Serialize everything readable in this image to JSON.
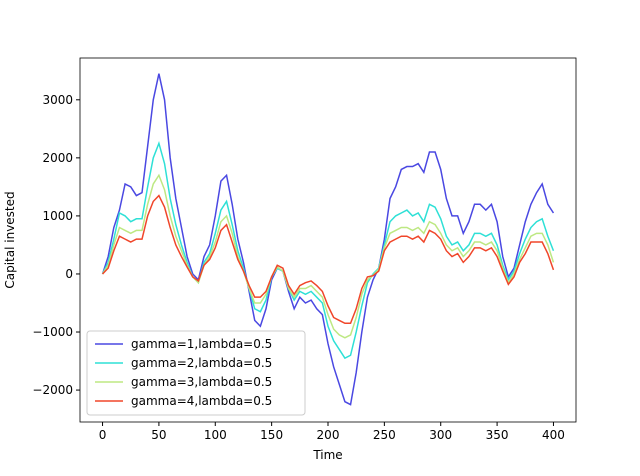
{
  "chart_data": {
    "type": "line",
    "x_label": "Time",
    "y_label": "Capital invested",
    "x": [
      0,
      5,
      10,
      15,
      20,
      25,
      30,
      35,
      40,
      45,
      50,
      55,
      60,
      65,
      70,
      75,
      80,
      85,
      90,
      95,
      100,
      105,
      110,
      115,
      120,
      125,
      130,
      135,
      140,
      145,
      150,
      155,
      160,
      165,
      170,
      175,
      180,
      185,
      190,
      195,
      200,
      205,
      210,
      215,
      220,
      225,
      230,
      235,
      240,
      245,
      250,
      255,
      260,
      265,
      270,
      275,
      280,
      285,
      290,
      295,
      300,
      305,
      310,
      315,
      320,
      325,
      330,
      335,
      340,
      345,
      350,
      355,
      360,
      365,
      370,
      375,
      380,
      385,
      390,
      395,
      400
    ],
    "series": [
      {
        "name": "gamma=1,lambda=0.5",
        "color": "#4a48e2",
        "values": [
          0,
          300,
          800,
          1100,
          1550,
          1500,
          1350,
          1400,
          2200,
          3000,
          3450,
          3000,
          2000,
          1300,
          800,
          300,
          0,
          -100,
          300,
          500,
          1000,
          1600,
          1700,
          1200,
          600,
          200,
          -300,
          -800,
          -900,
          -600,
          -100,
          100,
          50,
          -300,
          -600,
          -400,
          -500,
          -450,
          -600,
          -700,
          -1200,
          -1600,
          -1900,
          -2200,
          -2250,
          -1700,
          -1000,
          -400,
          -100,
          100,
          600,
          1300,
          1500,
          1800,
          1850,
          1850,
          1900,
          1750,
          2100,
          2100,
          1800,
          1300,
          1000,
          1000,
          700,
          900,
          1200,
          1200,
          1100,
          1200,
          900,
          300,
          -50,
          100,
          500,
          900,
          1200,
          1400,
          1550,
          1200,
          1050
        ]
      },
      {
        "name": "gamma=2,lambda=0.5",
        "color": "#2ee0d6",
        "values": [
          0,
          200,
          600,
          1050,
          1000,
          900,
          950,
          950,
          1500,
          2000,
          2250,
          1900,
          1300,
          850,
          500,
          200,
          -50,
          -150,
          200,
          350,
          700,
          1100,
          1250,
          850,
          400,
          100,
          -250,
          -600,
          -650,
          -450,
          -50,
          100,
          50,
          -250,
          -450,
          -300,
          -350,
          -300,
          -400,
          -500,
          -900,
          -1150,
          -1300,
          -1450,
          -1400,
          -1000,
          -550,
          -150,
          0,
          100,
          500,
          900,
          1000,
          1050,
          1100,
          1000,
          1050,
          900,
          1200,
          1150,
          950,
          650,
          500,
          550,
          400,
          500,
          700,
          700,
          650,
          700,
          500,
          150,
          -100,
          50,
          350,
          600,
          800,
          900,
          950,
          650,
          400
        ]
      },
      {
        "name": "gamma=3,lambda=0.5",
        "color": "#bde882",
        "values": [
          0,
          150,
          500,
          800,
          750,
          700,
          750,
          750,
          1200,
          1550,
          1700,
          1450,
          1000,
          650,
          400,
          150,
          -50,
          -150,
          150,
          300,
          550,
          900,
          1000,
          700,
          300,
          50,
          -250,
          -500,
          -500,
          -350,
          -50,
          120,
          50,
          -250,
          -400,
          -250,
          -250,
          -200,
          -300,
          -400,
          -700,
          -950,
          -1050,
          -1100,
          -1050,
          -750,
          -350,
          -100,
          -20,
          80,
          450,
          700,
          750,
          800,
          800,
          750,
          800,
          700,
          900,
          850,
          700,
          500,
          400,
          450,
          300,
          400,
          550,
          550,
          500,
          550,
          400,
          100,
          -150,
          0,
          250,
          450,
          650,
          700,
          700,
          500,
          200
        ]
      },
      {
        "name": "gamma=4,lambda=0.5",
        "color": "#f0462a",
        "values": [
          0,
          100,
          400,
          650,
          600,
          550,
          600,
          600,
          1000,
          1250,
          1350,
          1150,
          800,
          500,
          300,
          120,
          -50,
          -120,
          150,
          250,
          450,
          750,
          850,
          550,
          250,
          50,
          -200,
          -400,
          -400,
          -300,
          -50,
          150,
          100,
          -200,
          -350,
          -200,
          -150,
          -120,
          -200,
          -300,
          -550,
          -750,
          -800,
          -850,
          -850,
          -600,
          -250,
          -50,
          -30,
          50,
          400,
          550,
          600,
          650,
          650,
          600,
          650,
          550,
          750,
          700,
          600,
          400,
          300,
          350,
          200,
          300,
          450,
          450,
          400,
          450,
          300,
          50,
          -180,
          -50,
          200,
          350,
          550,
          550,
          550,
          350,
          70
        ]
      }
    ],
    "xlim": [
      -20,
      420
    ],
    "ylim": [
      -2550,
      3720
    ],
    "xticks": [
      0,
      50,
      100,
      150,
      200,
      250,
      300,
      350,
      400
    ],
    "yticks": [
      {
        "value": -2000,
        "label": "−2000"
      },
      {
        "value": -1000,
        "label": "−1000"
      },
      0,
      1000,
      2000,
      3000
    ],
    "legend": "lower left"
  }
}
